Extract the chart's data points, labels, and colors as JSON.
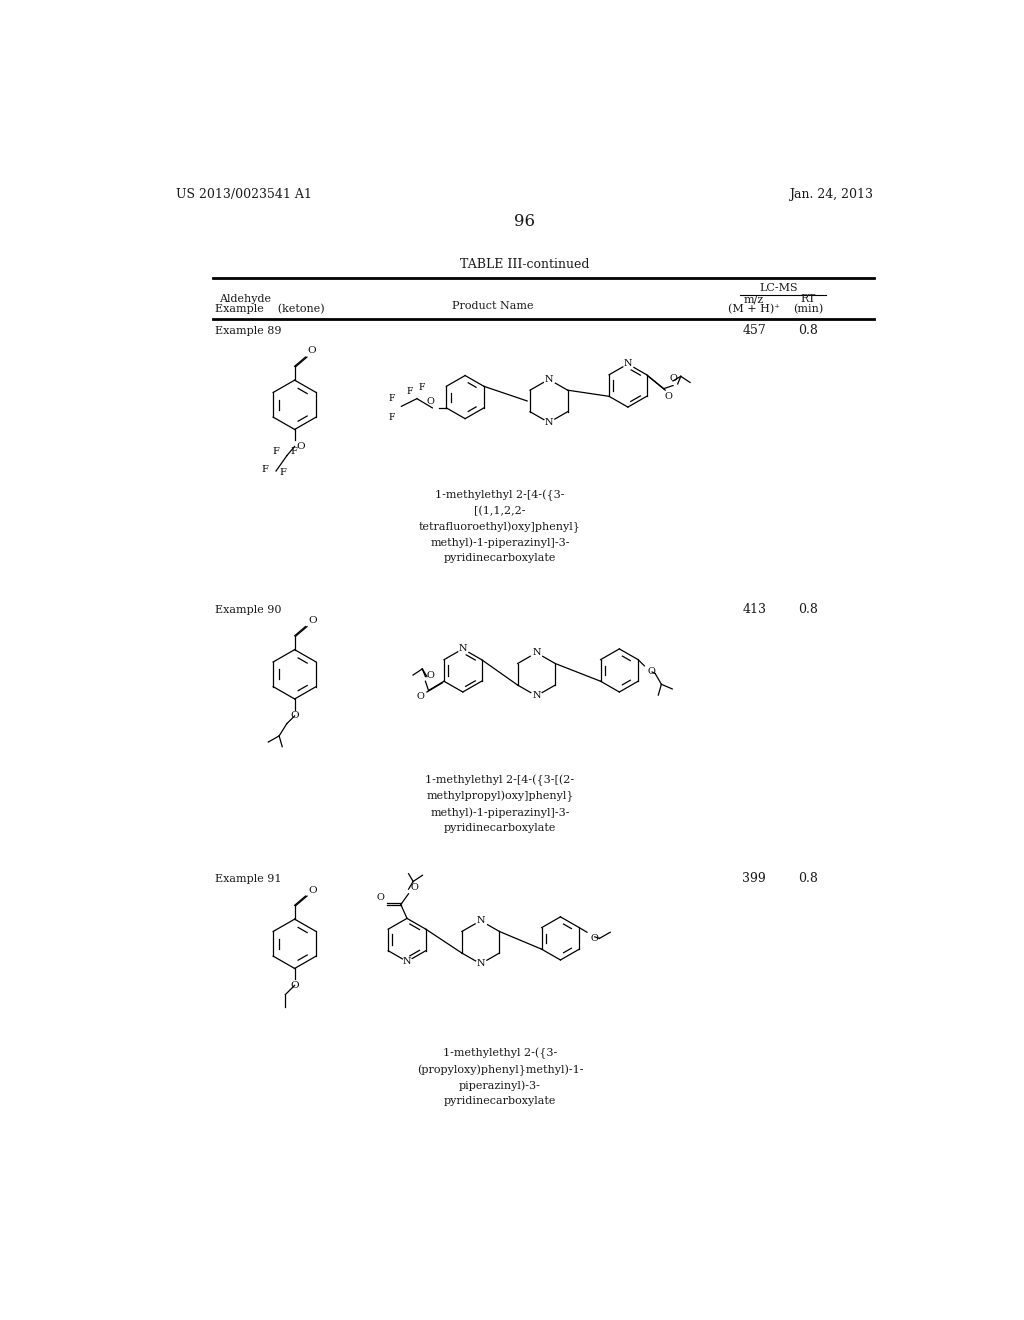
{
  "bg_color": "#ffffff",
  "page_number": "96",
  "header_left": "US 2013/0023541 A1",
  "header_right": "Jan. 24, 2013",
  "table_title": "TABLE III-continued",
  "rows": [
    {
      "example": "Example 89",
      "mz": "457",
      "rt": "0.8",
      "product_name": "1-methylethyl 2-[4-({3-\n[(1,1,2,2-\ntetrafluoroethyl)oxy]phenyl}\nmethyl)-1-piperazinyl]-3-\npyridinecarboxylate"
    },
    {
      "example": "Example 90",
      "mz": "413",
      "rt": "0.8",
      "product_name": "1-methylethyl 2-[4-({3-[(2-\nmethylpropyl)oxy]phenyl}\nmethyl)-1-piperazinyl]-3-\npyridinecarboxylate"
    },
    {
      "example": "Example 91",
      "mz": "399",
      "rt": "0.8",
      "product_name": "1-methylethyl 2-({3-\n(propyloxy)phenyl}methyl)-1-\npiperazinyl)-3-\npyridinecarboxylate"
    }
  ]
}
